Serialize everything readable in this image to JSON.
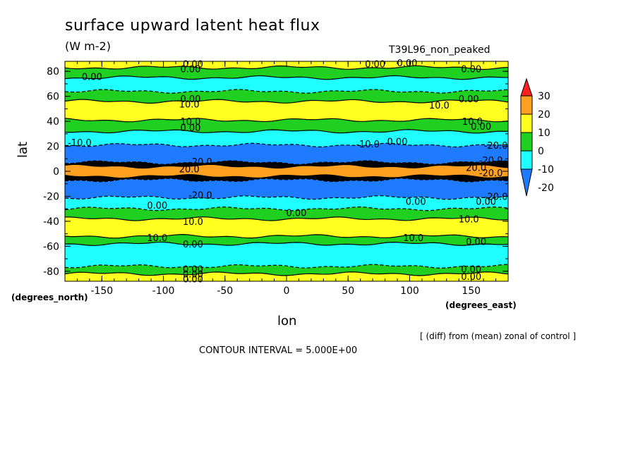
{
  "header": {
    "title": "surface upward latent heat flux",
    "units": "(W m-2)",
    "run_name": "T39L96_non_peaked"
  },
  "footer": {
    "note": "[ (diff) from (mean) zonal of control ]",
    "contour_interval": "CONTOUR INTERVAL = 5.000E+00"
  },
  "chart_data": {
    "type": "heatmap",
    "title": "surface upward latent heat flux",
    "xlabel": "lon",
    "ylabel": "lat",
    "xunits": "(degrees_east)",
    "yunits": "(degrees_north)",
    "xlim": [
      -180,
      180
    ],
    "ylim": [
      -88,
      88
    ],
    "x_ticks": [
      -150,
      -100,
      -50,
      0,
      50,
      100,
      150
    ],
    "y_ticks": [
      80,
      60,
      40,
      20,
      0,
      -20,
      -40,
      -60,
      -80
    ],
    "x_tick_labels": [
      "-150",
      "-100",
      "-50",
      "0",
      "50",
      "100",
      "150"
    ],
    "y_tick_labels": [
      "80",
      "60",
      "40",
      "20",
      "0",
      "-20",
      "-40",
      "-60",
      "-80"
    ],
    "colorbar": {
      "labels": [
        "30",
        "20",
        "10",
        "0",
        "-10",
        "-20"
      ],
      "colors": [
        "#ff1f1f",
        "#ffa020",
        "#ffff20",
        "#20d020",
        "#20ffff",
        "#1e7bff"
      ]
    },
    "bands": [
      {
        "lat": [
          83,
          88
        ],
        "value": 10
      },
      {
        "lat": [
          75,
          83
        ],
        "value": 0
      },
      {
        "lat": [
          64,
          75
        ],
        "value": -10
      },
      {
        "lat": [
          56,
          64
        ],
        "value": 0
      },
      {
        "lat": [
          41,
          56
        ],
        "value": 10
      },
      {
        "lat": [
          32,
          41
        ],
        "value": 0
      },
      {
        "lat": [
          21,
          32
        ],
        "value": -10
      },
      {
        "lat": [
          7,
          21
        ],
        "value": -20
      },
      {
        "lat": [
          4,
          7
        ],
        "value": -30
      },
      {
        "lat": [
          -4,
          4
        ],
        "value": 20
      },
      {
        "lat": [
          -7,
          -4
        ],
        "value": -30
      },
      {
        "lat": [
          -21,
          -7
        ],
        "value": -20
      },
      {
        "lat": [
          -30,
          -21
        ],
        "value": -10
      },
      {
        "lat": [
          -38,
          -30
        ],
        "value": 0
      },
      {
        "lat": [
          -52,
          -38
        ],
        "value": 10
      },
      {
        "lat": [
          -58,
          -52
        ],
        "value": 0
      },
      {
        "lat": [
          -76,
          -58
        ],
        "value": -10
      },
      {
        "lat": [
          -82,
          -76
        ],
        "value": 0
      },
      {
        "lat": [
          -88,
          -82
        ],
        "value": 10
      }
    ],
    "annotations": [
      {
        "text": "0.00",
        "lon": -76,
        "lat": 86
      },
      {
        "text": "0.00",
        "lon": -78,
        "lat": 82
      },
      {
        "text": "0.00",
        "lon": 72,
        "lat": 86
      },
      {
        "text": "0.00",
        "lon": 98,
        "lat": 87
      },
      {
        "text": "0.00",
        "lon": 150,
        "lat": 82
      },
      {
        "text": "0.00",
        "lon": -158,
        "lat": 76
      },
      {
        "text": "0.00",
        "lon": -78,
        "lat": 58
      },
      {
        "text": "10.0",
        "lon": -79,
        "lat": 54
      },
      {
        "text": "0.00",
        "lon": 148,
        "lat": 58
      },
      {
        "text": "10.0",
        "lon": 124,
        "lat": 53
      },
      {
        "text": "10.0",
        "lon": -78,
        "lat": 40
      },
      {
        "text": "0.00",
        "lon": -78,
        "lat": 35
      },
      {
        "text": "10.0",
        "lon": 151,
        "lat": 40
      },
      {
        "text": "0.00",
        "lon": 158,
        "lat": 36
      },
      {
        "text": "-10.0",
        "lon": -168,
        "lat": 23
      },
      {
        "text": "-10.0",
        "lon": 66,
        "lat": 22
      },
      {
        "text": "0.00",
        "lon": 90,
        "lat": 24
      },
      {
        "text": "-20.0",
        "lon": 170,
        "lat": 21
      },
      {
        "text": "-20.0",
        "lon": -70,
        "lat": 8
      },
      {
        "text": "20.0",
        "lon": -79,
        "lat": 2
      },
      {
        "text": "-20.0",
        "lon": 166,
        "lat": 9
      },
      {
        "text": "20.0",
        "lon": 154,
        "lat": 3
      },
      {
        "text": "-20.0",
        "lon": 166,
        "lat": -1
      },
      {
        "text": "-20.0",
        "lon": -70,
        "lat": -19
      },
      {
        "text": "-20.0",
        "lon": 170,
        "lat": -20
      },
      {
        "text": "0.00",
        "lon": -105,
        "lat": -27
      },
      {
        "text": "0.00",
        "lon": 105,
        "lat": -24
      },
      {
        "text": "0.00",
        "lon": 162,
        "lat": -24
      },
      {
        "text": "0.00",
        "lon": 8,
        "lat": -33
      },
      {
        "text": "10.0",
        "lon": -76,
        "lat": -40
      },
      {
        "text": "10.0",
        "lon": 148,
        "lat": -38
      },
      {
        "text": "10.0",
        "lon": -105,
        "lat": -53
      },
      {
        "text": "0.00",
        "lon": -76,
        "lat": -58
      },
      {
        "text": "10.0",
        "lon": 103,
        "lat": -53
      },
      {
        "text": "0.00",
        "lon": 154,
        "lat": -56
      },
      {
        "text": "0.00",
        "lon": -76,
        "lat": -78
      },
      {
        "text": "0.00",
        "lon": -76,
        "lat": -82
      },
      {
        "text": "0.00",
        "lon": -76,
        "lat": -86
      },
      {
        "text": "0.00",
        "lon": 150,
        "lat": -78
      },
      {
        "text": "0.00",
        "lon": 150,
        "lat": -84
      }
    ]
  }
}
